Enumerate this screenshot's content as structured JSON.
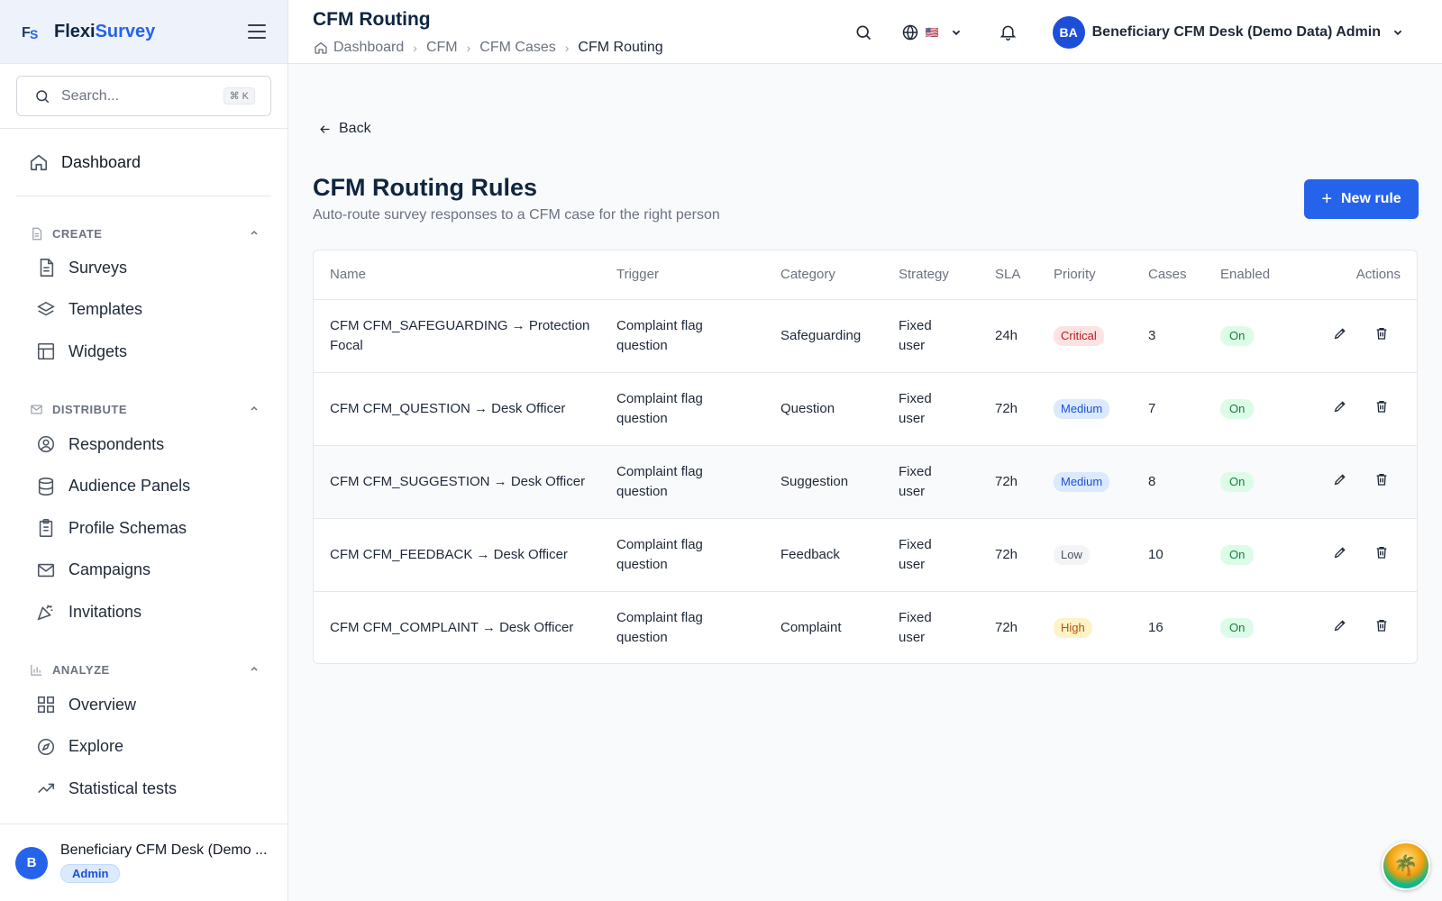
{
  "brand": {
    "name_part1": "Flexi",
    "name_part2": "Survey",
    "logo_text": "FS"
  },
  "search": {
    "placeholder": "Search...",
    "shortcut": "⌘ K"
  },
  "nav": {
    "dashboard": "Dashboard",
    "sections": {
      "create": {
        "title": "CREATE",
        "items": [
          "Surveys",
          "Templates",
          "Widgets"
        ]
      },
      "distribute": {
        "title": "DISTRIBUTE",
        "items": [
          "Respondents",
          "Audience Panels",
          "Profile Schemas",
          "Campaigns",
          "Invitations"
        ]
      },
      "analyze": {
        "title": "ANALYZE",
        "items": [
          "Overview",
          "Explore",
          "Statistical tests"
        ]
      }
    }
  },
  "sidebar_footer": {
    "initial": "B",
    "name": "Beneficiary CFM Desk (Demo ...",
    "role": "Admin"
  },
  "header": {
    "title": "CFM Routing",
    "breadcrumb": [
      "Dashboard",
      "CFM",
      "CFM Cases",
      "CFM Routing"
    ],
    "flag": "🇺🇸",
    "user_initials": "BA",
    "user_name": "Beneficiary CFM Desk (Demo Data) Admin"
  },
  "main": {
    "back_label": "Back",
    "title": "CFM Routing Rules",
    "subtitle": "Auto-route survey responses to a CFM case for the right person",
    "new_rule_label": "New rule",
    "columns": [
      "Name",
      "Trigger",
      "Category",
      "Strategy",
      "SLA",
      "Priority",
      "Cases",
      "Enabled",
      "Actions"
    ],
    "rows": [
      {
        "name": "CFM CFM_SAFEGUARDING → Protection Focal",
        "trigger": "Complaint flag question",
        "category": "Safeguarding",
        "strategy": "Fixed user",
        "sla": "24h",
        "priority": "Critical",
        "cases": "3",
        "enabled": "On"
      },
      {
        "name": "CFM CFM_QUESTION → Desk Officer",
        "trigger": "Complaint flag question",
        "category": "Question",
        "strategy": "Fixed user",
        "sla": "72h",
        "priority": "Medium",
        "cases": "7",
        "enabled": "On"
      },
      {
        "name": "CFM CFM_SUGGESTION → Desk Officer",
        "trigger": "Complaint flag question",
        "category": "Suggestion",
        "strategy": "Fixed user",
        "sla": "72h",
        "priority": "Medium",
        "cases": "8",
        "enabled": "On"
      },
      {
        "name": "CFM CFM_FEEDBACK → Desk Officer",
        "trigger": "Complaint flag question",
        "category": "Feedback",
        "strategy": "Fixed user",
        "sla": "72h",
        "priority": "Low",
        "cases": "10",
        "enabled": "On"
      },
      {
        "name": "CFM CFM_COMPLAINT → Desk Officer",
        "trigger": "Complaint flag question",
        "category": "Complaint",
        "strategy": "Fixed user",
        "sla": "72h",
        "priority": "High",
        "cases": "16",
        "enabled": "On"
      }
    ]
  },
  "colors": {
    "accent": "#2563eb",
    "critical": "#b91c1c",
    "medium": "#1d4ed8",
    "low": "#4b5563",
    "high": "#b45309",
    "on": "#15803d"
  },
  "icons": [
    "hamburger-icon",
    "search-icon",
    "home-icon",
    "document-icon",
    "layers-icon",
    "layout-icon",
    "mail-icon",
    "user-circle-icon",
    "database-icon",
    "clipboard-icon",
    "party-icon",
    "bar-chart-icon",
    "grid-icon",
    "compass-icon",
    "trend-icon",
    "globe-icon",
    "chevron-down-icon",
    "bell-icon",
    "arrow-left-icon",
    "plus-icon",
    "pencil-icon",
    "trash-icon"
  ]
}
